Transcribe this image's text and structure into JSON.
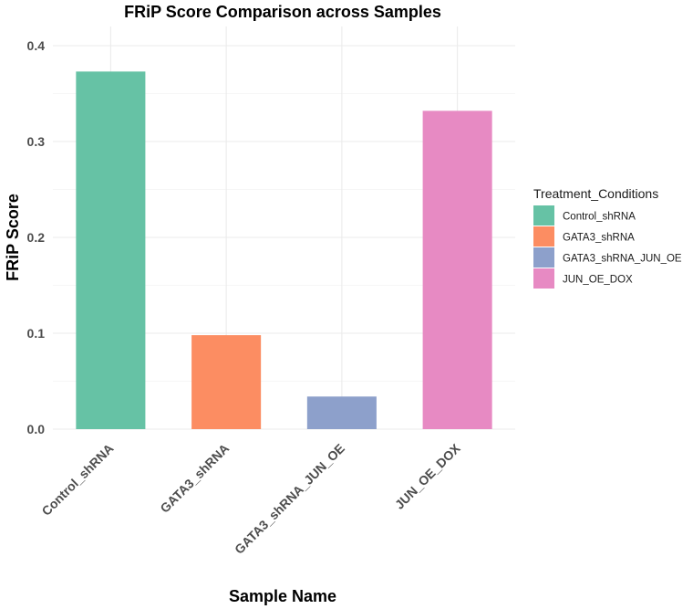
{
  "chart_data": {
    "type": "bar",
    "title": "FRiP Score Comparison across Samples",
    "xlabel": "Sample Name",
    "ylabel": "FRiP Score",
    "categories": [
      "Control_shRNA",
      "GATA3_shRNA",
      "GATA3_shRNA_JUN_OE",
      "JUN_OE_DOX"
    ],
    "values": [
      0.373,
      0.098,
      0.034,
      0.332
    ],
    "colors": [
      "#66c2a5",
      "#fc8d62",
      "#8da0cb",
      "#e78ac3"
    ],
    "ylim": [
      0,
      0.42
    ],
    "yticks": [
      "0.0",
      "0.1",
      "0.2",
      "0.3",
      "0.4"
    ],
    "grid": true,
    "legend": {
      "title": "Treatment_Conditions",
      "placement": "right",
      "entries": [
        "Control_shRNA",
        "GATA3_shRNA",
        "GATA3_shRNA_JUN_OE",
        "JUN_OE_DOX"
      ]
    }
  }
}
